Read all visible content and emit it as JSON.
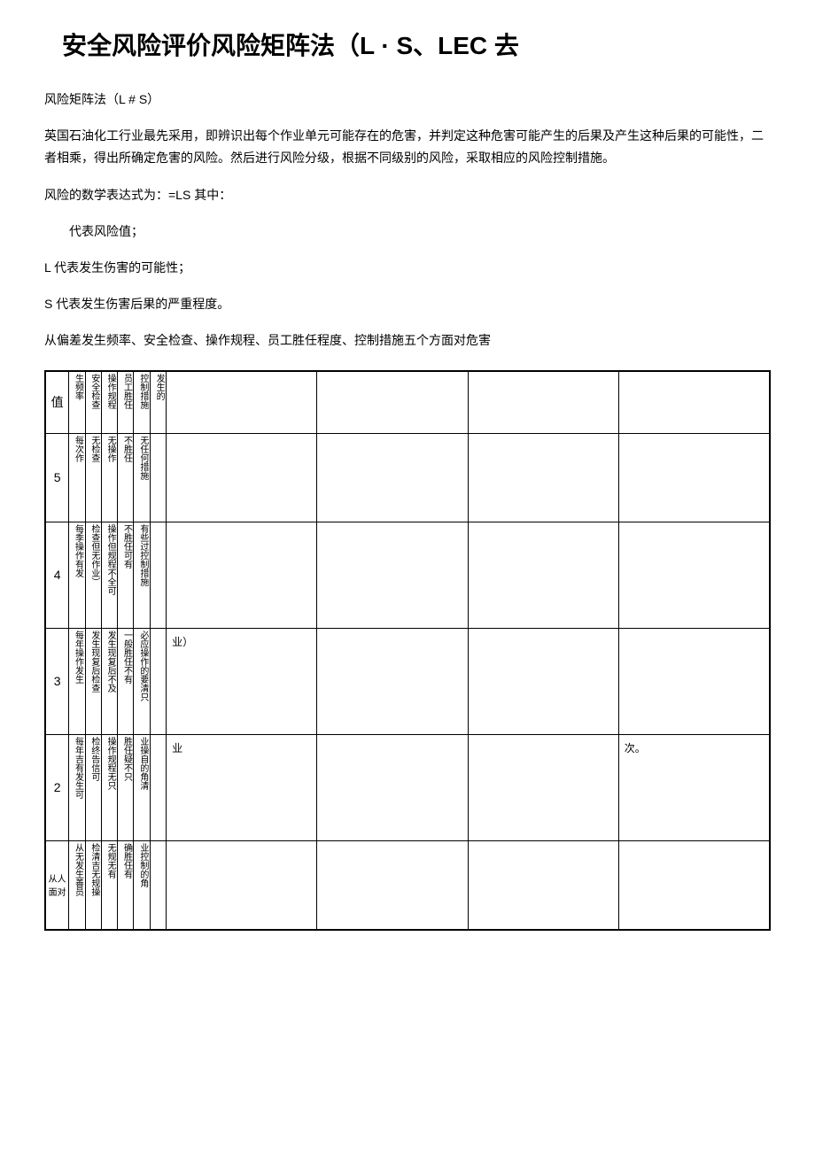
{
  "title": "安全风险评价风险矩阵法（L · S、LEC 去",
  "intro": {
    "heading": "风险矩阵法（L # S）",
    "paragraph": "英国石油化工行业最先采用，即辨识出每个作业单元可能存在的危害，并判定这种危害可能产生的后果及产生这种后果的可能性，二者相乘，得出所确定危害的风险。然后进行风险分级，根据不同级别的风险，采取相应的风险控制措施。",
    "formula": "风险的数学表达式为：=LS 其中：",
    "line1": "代表风险值；",
    "line2": "L 代表发生伤害的可能性；",
    "line3": "S 代表发生伤害后果的严重程度。",
    "line4": "从偏差发生频率、安全检查、操作规程、员工胜任程度、控制措施五个方面对危害"
  },
  "table": {
    "header": {
      "c0": "值",
      "c1": "生频率",
      "c2": "安全检查",
      "c3": "操作规程",
      "c4": "员工胜任",
      "c5": "控制措施",
      "c6": "发生的"
    },
    "rows": [
      {
        "val": "5",
        "c1": "每次作",
        "c2": "无检查",
        "c3": "无操作",
        "c4": "不胜任",
        "c5": "无任何措施",
        "wide1": "",
        "wide2": "",
        "wide3": "",
        "wide4": ""
      },
      {
        "val": "4",
        "c1": "每季操作有发",
        "c2": "检查但无作业）",
        "c3": "操作但规程不全可",
        "c4": "不胜任可有",
        "c5": "有些过控制措施",
        "wide1": "",
        "wide2": "",
        "wide3": "",
        "wide4": ""
      },
      {
        "val": "3",
        "c1": "每年操作发生",
        "c2": "发生现复后检查",
        "c3": "发生现复后不及",
        "c4": "一般胜任不有",
        "c5": "必应操作的要清只",
        "vis": "业）",
        "wide1": "",
        "wide2": "",
        "wide3": "",
        "wide4": ""
      },
      {
        "val": "2",
        "c1": "每年吉有发生可",
        "c2": "检终告信可",
        "c3": "操作规程无只",
        "c4": "胜任疑不只",
        "c5": "业操自的角清",
        "vis": "业",
        "wide1": "",
        "wide2": "",
        "wide3": "",
        "wide4": "次。"
      },
      {
        "val": "从人面对",
        "c1": "从无发生善员",
        "c2": "检清吉无规操",
        "c3": "无规无有",
        "c4": "确胜任有",
        "c5": "业控制的角",
        "wide1": "",
        "wide2": "",
        "wide3": "",
        "wide4": ""
      }
    ]
  },
  "colors": {
    "text": "#000000",
    "background": "#ffffff",
    "border": "#000000",
    "faded": "rgba(0,0,0,0.06)"
  }
}
